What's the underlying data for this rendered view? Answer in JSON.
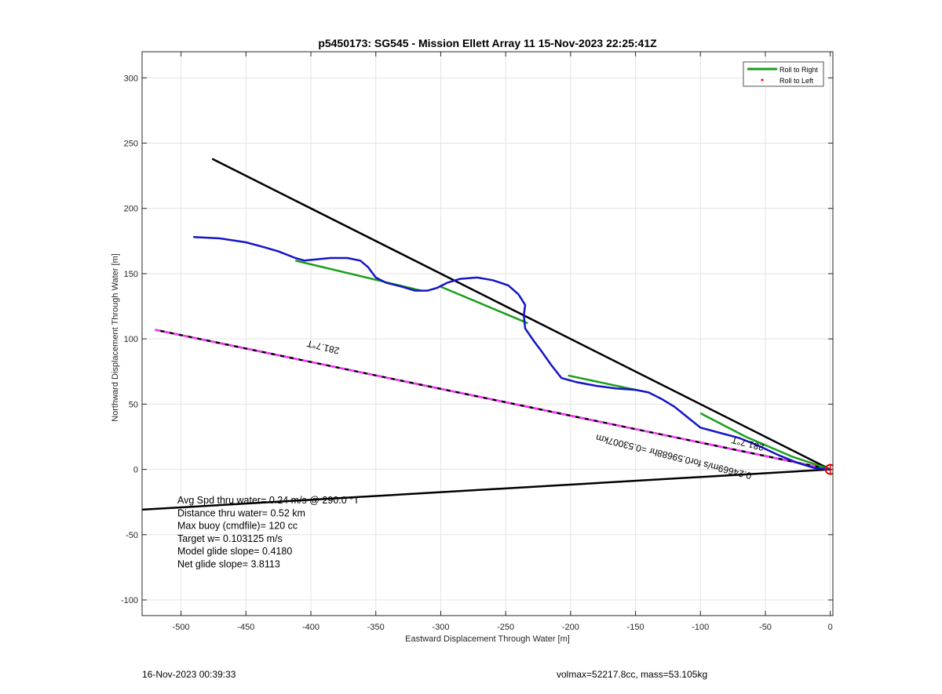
{
  "chart_data": {
    "type": "line",
    "title": "p5450173: SG545 - Mission Ellett Array 11 15-Nov-2023 22:25:41Z",
    "xlabel": "Eastward Displacement Through Water [m]",
    "ylabel": "Northward Displacement Through Water [m]",
    "xlim": [
      -530,
      2
    ],
    "ylim": [
      -112,
      320
    ],
    "xticks": [
      -500,
      -450,
      -400,
      -350,
      -300,
      -250,
      -200,
      -150,
      -100,
      -50,
      0
    ],
    "yticks": [
      -100,
      -50,
      0,
      50,
      100,
      150,
      200,
      250,
      300
    ],
    "grid": true,
    "legend_position": "top-right",
    "legend": [
      {
        "label": "Roll to Right",
        "color": "#1a9e1a",
        "marker": "line"
      },
      {
        "label": "Roll to Left",
        "color": "#ff0000",
        "marker": "dot"
      }
    ],
    "series": [
      {
        "color": "#1a9e1a",
        "segments": [
          [
            [
              -412,
              160
            ],
            [
              -315,
              137
            ]
          ],
          [
            [
              -300,
              140
            ],
            [
              -233,
              112
            ]
          ],
          [
            [
              -202,
              72
            ],
            [
              -150,
              61
            ]
          ],
          [
            [
              -100,
              43
            ],
            [
              -65,
              25
            ],
            [
              -30,
              10
            ],
            [
              0,
              0
            ]
          ]
        ]
      },
      {
        "color": "#1414c8",
        "points": [
          [
            -490,
            178
          ],
          [
            -470,
            177
          ],
          [
            -450,
            174
          ],
          [
            -435,
            170
          ],
          [
            -425,
            167
          ],
          [
            -412,
            162
          ],
          [
            -405,
            160
          ],
          [
            -395,
            161
          ],
          [
            -385,
            162
          ],
          [
            -372,
            162
          ],
          [
            -362,
            160
          ],
          [
            -356,
            155
          ],
          [
            -350,
            147
          ],
          [
            -342,
            143
          ],
          [
            -330,
            140
          ],
          [
            -320,
            137
          ],
          [
            -310,
            137
          ],
          [
            -303,
            139
          ],
          [
            -295,
            143
          ],
          [
            -285,
            146
          ],
          [
            -272,
            147
          ],
          [
            -260,
            145
          ],
          [
            -248,
            141
          ],
          [
            -240,
            134
          ],
          [
            -235,
            126
          ],
          [
            -236,
            118
          ],
          [
            -235,
            108
          ],
          [
            -228,
            98
          ],
          [
            -222,
            90
          ],
          [
            -215,
            80
          ],
          [
            -207,
            70
          ],
          [
            -196,
            67
          ],
          [
            -180,
            64
          ],
          [
            -165,
            62
          ],
          [
            -150,
            61
          ],
          [
            -140,
            59
          ],
          [
            -130,
            54
          ],
          [
            -120,
            48
          ],
          [
            -110,
            40
          ],
          [
            -100,
            32
          ],
          [
            -85,
            28
          ],
          [
            -70,
            24
          ],
          [
            -55,
            18
          ],
          [
            -40,
            11
          ],
          [
            -25,
            5
          ],
          [
            -12,
            1
          ],
          [
            0,
            0
          ]
        ]
      }
    ],
    "reference_lines": [
      {
        "points": [
          [
            -476,
            238
          ],
          [
            0,
            0
          ]
        ],
        "color": "#000000"
      },
      {
        "points": [
          [
            -533,
            -31
          ],
          [
            0,
            0
          ]
        ],
        "color": "#000000"
      },
      {
        "points": [
          [
            -520,
            107
          ],
          [
            0,
            0
          ]
        ],
        "color": "#000000",
        "overlay_color": "#ff33ff",
        "dashed": true
      }
    ],
    "end_marker": {
      "x": 0,
      "y": 0,
      "color": "#e00000"
    },
    "annotations": [
      {
        "text": "281.7°T",
        "x": -390,
        "y": 96,
        "rotate": 194
      },
      {
        "text": "281.7°T",
        "x": -63,
        "y": 22,
        "rotate": 194
      },
      {
        "text": "0.24669m/s for0.59688hr =0.53007km",
        "x": -120,
        "y": 12,
        "rotate": 194
      }
    ],
    "stats": [
      "Avg Spd thru water= 0.24 m/s @ 290.0 °T",
      "Distance thru water=  0.52 km",
      "Max buoy (cmdfile)= 120 cc",
      "Target w= 0.103125 m/s",
      "Model glide slope= 0.4180",
      "Net glide slope= 3.8113"
    ]
  },
  "footer": {
    "timestamp": "16-Nov-2023 00:39:33",
    "info": "volmax=52217.8cc, mass=53.105kg"
  }
}
